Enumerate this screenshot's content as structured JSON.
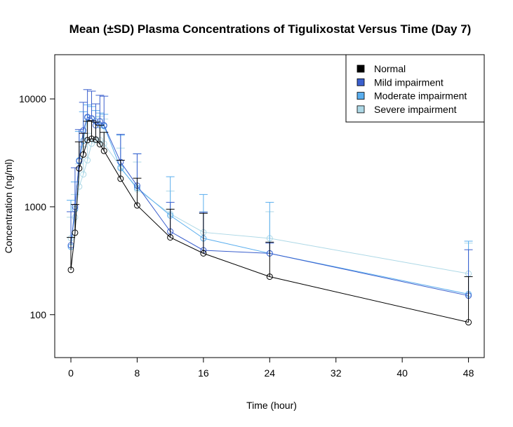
{
  "chart_data": {
    "type": "line",
    "title": "Mean (±SD) Plasma Concentrations of Tigulixostat Versus Time (Day 7)",
    "xlabel": "Time (hour)",
    "ylabel": "Concentration (ng/ml)",
    "xlim": [
      -1.95,
      49.9
    ],
    "ylim": [
      40,
      25700
    ],
    "yscale": "log",
    "xticks": [
      0,
      8,
      16,
      24,
      32,
      40,
      48
    ],
    "yticks": [
      100,
      1000,
      10000
    ],
    "ytick_labels": [
      "100",
      "1000",
      "10000"
    ],
    "legend_position": "top-right",
    "x": [
      0,
      0.5,
      1,
      1.5,
      2,
      2.5,
      3,
      3.5,
      4,
      6,
      8,
      12,
      16,
      24,
      48
    ],
    "series": [
      {
        "name": "Normal",
        "color": "#000000",
        "values": [
          260,
          575,
          2270,
          3050,
          4150,
          4270,
          4200,
          3800,
          3300,
          1820,
          1030,
          520,
          370,
          225,
          85
        ],
        "sd_upper": [
          520,
          1050,
          4000,
          4800,
          6200,
          6300,
          6100,
          5700,
          4900,
          2700,
          1840,
          950,
          870,
          470,
          225
        ]
      },
      {
        "name": "Mild impairment",
        "color": "#3a5fcd",
        "values": [
          440,
          1000,
          2650,
          5100,
          6800,
          6600,
          5700,
          6200,
          5700,
          2600,
          1570,
          590,
          395,
          370,
          150
        ],
        "sd_upper": [
          900,
          2300,
          5200,
          9300,
          12200,
          11800,
          9000,
          10800,
          10600,
          4700,
          3100,
          1100,
          890,
          460,
          400
        ]
      },
      {
        "name": "Moderate impairment",
        "color": "#5aaeee",
        "values": [
          425,
          950,
          2700,
          4100,
          6700,
          6600,
          6200,
          5700,
          5600,
          2280,
          1500,
          830,
          510,
          370,
          155
        ],
        "sd_upper": [
          1150,
          1700,
          5000,
          7600,
          8800,
          8500,
          7800,
          7400,
          7200,
          4600,
          3100,
          1900,
          1300,
          1100,
          480
        ]
      },
      {
        "name": "Severe impairment",
        "color": "#add8e6",
        "values": [
          510,
          800,
          1540,
          2000,
          2700,
          3850,
          4150,
          4150,
          3850,
          2340,
          1450,
          860,
          580,
          510,
          240
        ],
        "sd_upper": [
          800,
          1300,
          2500,
          3600,
          4800,
          6300,
          6800,
          6900,
          6500,
          3500,
          2600,
          1400,
          900,
          900,
          460
        ]
      }
    ]
  }
}
